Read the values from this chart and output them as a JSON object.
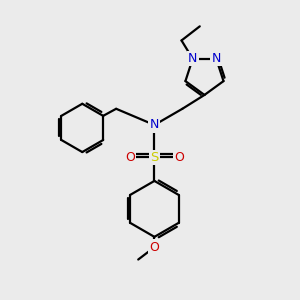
{
  "bg_color": "#ebebeb",
  "bond_color": "#000000",
  "N_color": "#0000cc",
  "O_color": "#cc0000",
  "S_color": "#cccc00",
  "line_width": 1.6,
  "xlim": [
    0,
    10
  ],
  "ylim": [
    0,
    10
  ]
}
